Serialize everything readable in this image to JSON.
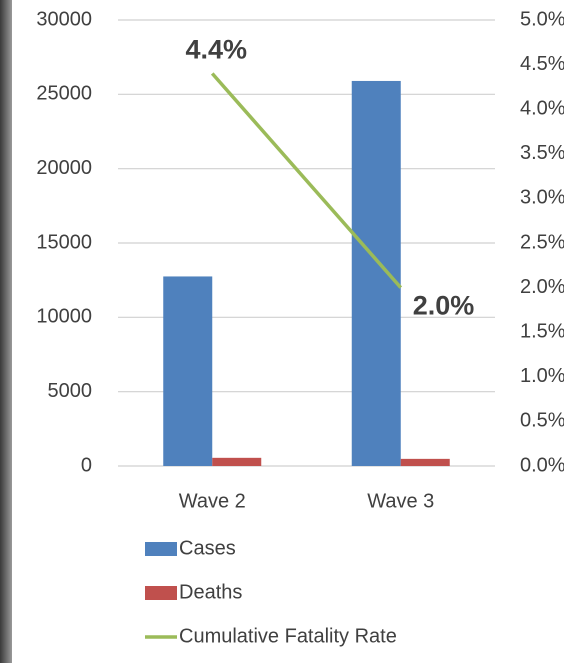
{
  "chart_data": {
    "type": "bar",
    "categories": [
      "Wave 2",
      "Wave 3"
    ],
    "series": [
      {
        "name": "Cases",
        "type": "bar",
        "color": "#4f81bd",
        "values": [
          12750,
          25900
        ]
      },
      {
        "name": "Deaths",
        "type": "bar",
        "color": "#c0504d",
        "values": [
          550,
          480
        ]
      },
      {
        "name": "Cumulative Fatality Rate",
        "type": "line",
        "axis": "y2",
        "color": "#9bbb59",
        "values": [
          4.4,
          2.0
        ],
        "value_labels": [
          "4.4%",
          "2.0%"
        ]
      }
    ],
    "ylim": [
      0,
      30000
    ],
    "yticks": [
      0,
      5000,
      10000,
      15000,
      20000,
      25000,
      30000
    ],
    "y2lim": [
      0,
      5.0
    ],
    "y2ticks": [
      {
        "value": 0,
        "label": "0.0%"
      },
      {
        "value": 0.5,
        "label": "0.5%"
      },
      {
        "value": 1.0,
        "label": "1.0%"
      },
      {
        "value": 1.5,
        "label": "1.5%"
      },
      {
        "value": 2.0,
        "label": "2.0%"
      },
      {
        "value": 2.5,
        "label": "2.5%"
      },
      {
        "value": 3.0,
        "label": "3.0%"
      },
      {
        "value": 3.5,
        "label": "3.5%"
      },
      {
        "value": 4.0,
        "label": "4.0%"
      },
      {
        "value": 4.5,
        "label": "4.5%"
      },
      {
        "value": 5.0,
        "label": "5.0%"
      }
    ],
    "grid": true,
    "legend": "bottom"
  }
}
